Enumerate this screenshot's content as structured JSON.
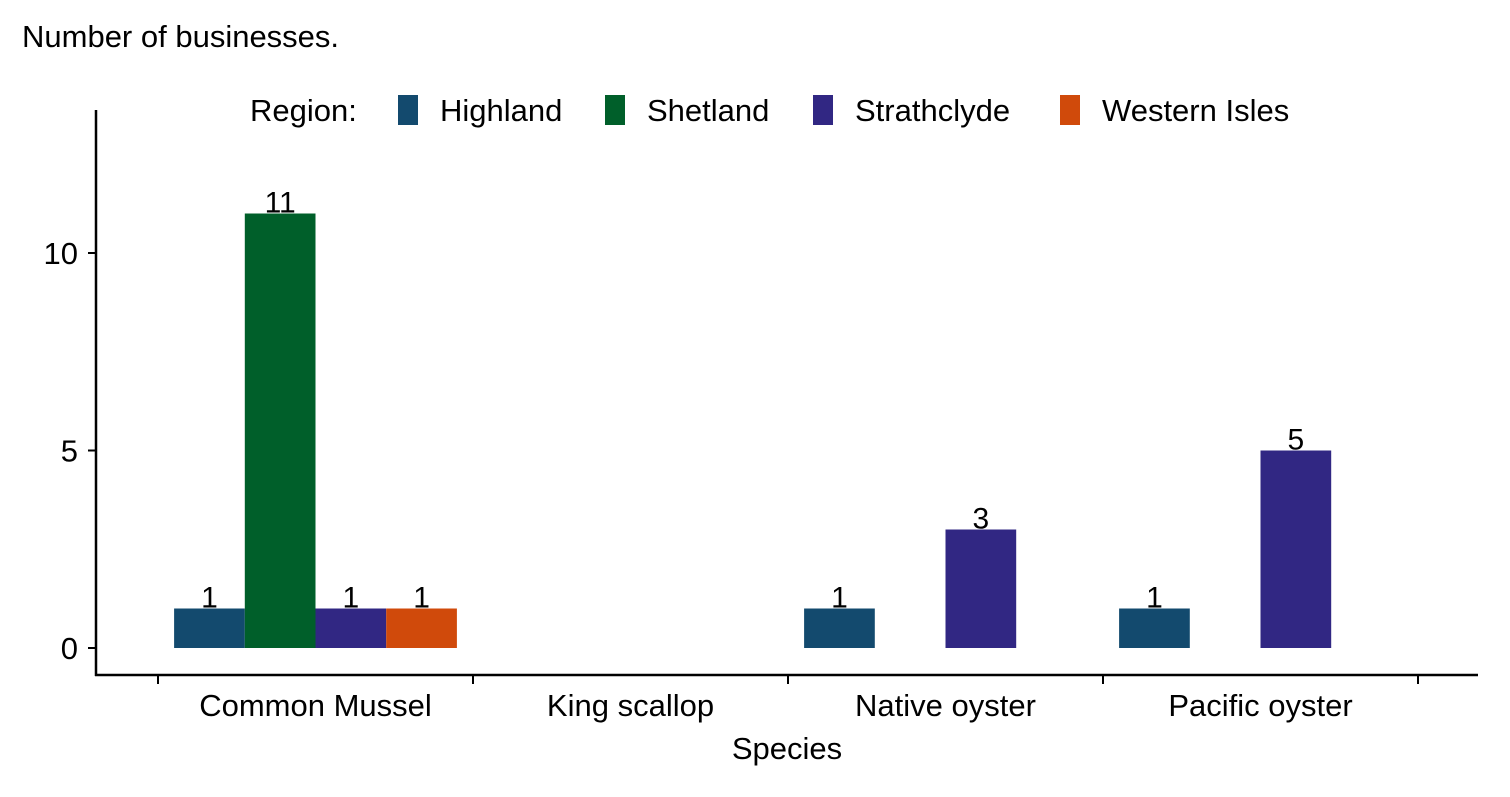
{
  "chart_data": {
    "type": "bar",
    "title": "Number of businesses.",
    "xlabel": "Species",
    "ylabel": "",
    "categories": [
      "Common Mussel",
      "King scallop",
      "Native oyster",
      "Pacific oyster"
    ],
    "legend": {
      "title": "Region:",
      "placement": "top"
    },
    "series": [
      {
        "name": "Highland",
        "color": "#134a6e",
        "values": [
          1,
          null,
          1,
          1
        ]
      },
      {
        "name": "Shetland",
        "color": "#005f2a",
        "values": [
          11,
          null,
          null,
          null
        ]
      },
      {
        "name": "Strathclyde",
        "color": "#312783",
        "values": [
          1,
          null,
          3,
          5
        ]
      },
      {
        "name": "Western Isles",
        "color": "#d04a0b",
        "values": [
          1,
          null,
          null,
          null
        ]
      }
    ],
    "yticks": [
      "0",
      "5",
      "10"
    ],
    "ylim": [
      -0.7,
      13.6
    ],
    "grid": false
  }
}
